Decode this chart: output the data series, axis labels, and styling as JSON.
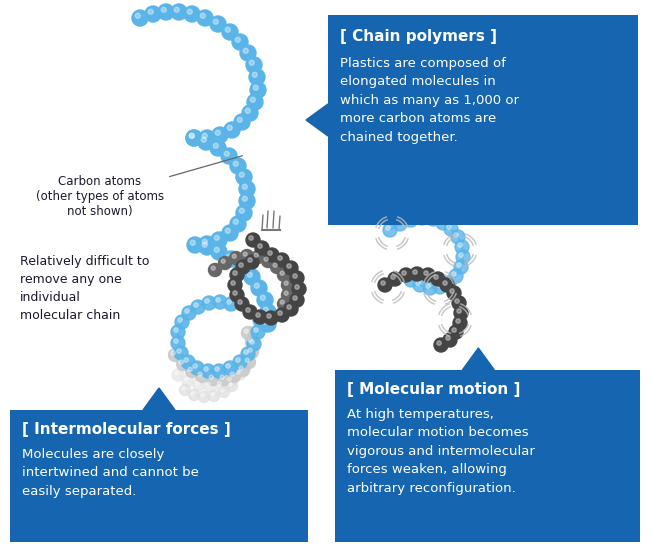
{
  "bg_color": "#ffffff",
  "box_color": "#1565b0",
  "text_color_white": "#ffffff",
  "text_color_dark": "#1a1a2e",
  "chain_polymers_title": "[ Chain polymers ]",
  "chain_polymers_body": "Plastics are composed of\nelongated molecules in\nwhich as many as 1,000 or\nmore carbon atoms are\nchained together.",
  "intermolecular_title": "[ Intermolecular forces ]",
  "intermolecular_body": "Molecules are closely\nintertwined and cannot be\neasily separated.",
  "molecular_motion_title": "[ Molecular motion ]",
  "molecular_motion_body": "At high temperatures,\nmolecular motion becomes\nvigorous and intermolecular\nforces weaken, allowing\narbitrary reconfiguration.",
  "carbon_atoms_label": "Carbon atoms\n(other types of atoms\nnot shown)",
  "difficult_label": "Relatively difficult to\nremove any one\nindividual\nmolecular chain",
  "blue_color": "#5ab4e8",
  "gray_color": "#c8c8c8",
  "dark_color": "#3a3a3a",
  "white_color": "#eeeeee"
}
